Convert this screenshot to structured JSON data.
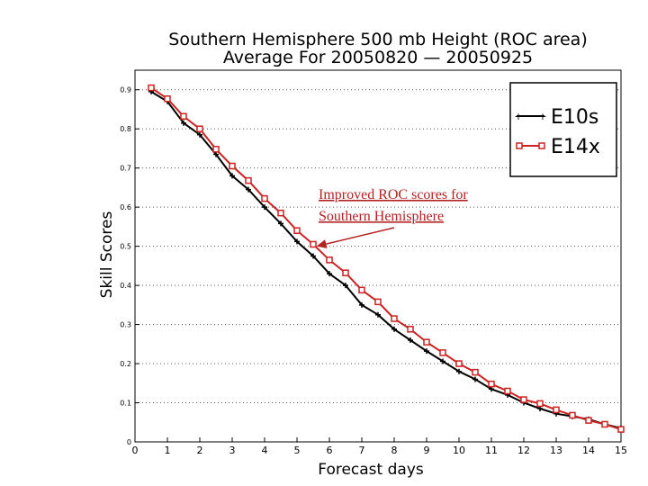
{
  "chart_data": {
    "type": "line",
    "title": "Southern Hemisphere 500 mb Height (ROC area)",
    "subtitle": "Average For 20050820 — 20050925",
    "xlabel": "Forecast days",
    "ylabel": "Skill Scores",
    "xlim": [
      0,
      15
    ],
    "ylim": [
      0,
      0.95
    ],
    "x_ticks": [
      0,
      1,
      2,
      3,
      4,
      5,
      6,
      7,
      8,
      9,
      10,
      11,
      12,
      13,
      14,
      15
    ],
    "y_ticks": [
      0,
      0.1,
      0.2,
      0.3,
      0.4,
      0.5,
      0.6,
      0.7,
      0.8,
      0.9
    ],
    "grid": true,
    "legend_position": "top-right",
    "series": [
      {
        "name": "E10s",
        "color": "#000000",
        "marker": "plus",
        "x": [
          0.5,
          1,
          1.5,
          2,
          2.5,
          3,
          3.5,
          4,
          4.5,
          5,
          5.5,
          6,
          6.5,
          7,
          7.5,
          8,
          8.5,
          9,
          9.5,
          10,
          10.5,
          11,
          11.5,
          12,
          12.5,
          13,
          13.5,
          14,
          14.5,
          15
        ],
        "values": [
          0.895,
          0.87,
          0.815,
          0.785,
          0.735,
          0.68,
          0.645,
          0.6,
          0.558,
          0.512,
          0.475,
          0.43,
          0.4,
          0.35,
          0.325,
          0.288,
          0.26,
          0.232,
          0.206,
          0.18,
          0.16,
          0.135,
          0.12,
          0.1,
          0.085,
          0.072,
          0.065,
          0.058,
          0.045,
          0.035
        ]
      },
      {
        "name": "E14x",
        "color": "#cc2222",
        "marker": "square",
        "x": [
          0.5,
          1,
          1.5,
          2,
          2.5,
          3,
          3.5,
          4,
          4.5,
          5,
          5.5,
          6,
          6.5,
          7,
          7.5,
          8,
          8.5,
          9,
          9.5,
          10,
          10.5,
          11,
          11.5,
          12,
          12.5,
          13,
          13.5,
          14,
          14.5,
          15
        ],
        "values": [
          0.905,
          0.877,
          0.832,
          0.8,
          0.748,
          0.705,
          0.668,
          0.622,
          0.585,
          0.54,
          0.505,
          0.465,
          0.432,
          0.388,
          0.358,
          0.315,
          0.288,
          0.255,
          0.228,
          0.2,
          0.178,
          0.148,
          0.13,
          0.108,
          0.098,
          0.082,
          0.068,
          0.055,
          0.045,
          0.032
        ]
      }
    ],
    "annotation": {
      "line1": "Improved ROC scores for",
      "line2": "Southern Hemisphere",
      "color": "#b22222",
      "points_to": {
        "x": 5.6,
        "y": 0.5
      }
    }
  }
}
